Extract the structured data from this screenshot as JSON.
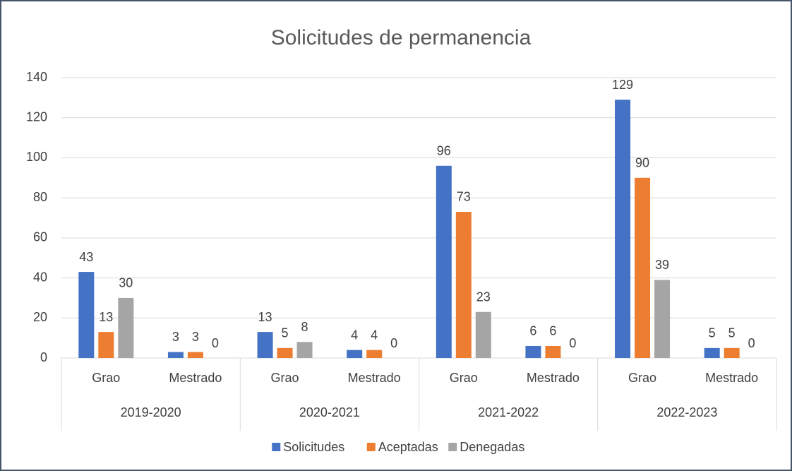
{
  "chart_data": {
    "type": "bar",
    "title": "Solicitudes de permanencia",
    "categories": [
      "Grao",
      "Mestrado",
      "Grao",
      "Mestrado",
      "Grao",
      "Mestrado",
      "Grao",
      "Mestrado"
    ],
    "category_groups": [
      "2019-2020",
      "2020-2021",
      "2021-2022",
      "2022-2023"
    ],
    "series": [
      {
        "name": "Solicitudes",
        "color": "#4472c4",
        "values": [
          43,
          3,
          13,
          4,
          96,
          6,
          129,
          5
        ]
      },
      {
        "name": "Aceptadas",
        "color": "#ed7d31",
        "values": [
          13,
          3,
          5,
          4,
          73,
          6,
          90,
          5
        ]
      },
      {
        "name": "Denegadas",
        "color": "#a5a5a5",
        "values": [
          30,
          0,
          8,
          0,
          23,
          0,
          39,
          0
        ]
      }
    ],
    "ylim": [
      0,
      140
    ],
    "yticks": [
      0,
      20,
      40,
      60,
      80,
      100,
      120,
      140
    ],
    "grid": true,
    "legend": "bottom"
  }
}
